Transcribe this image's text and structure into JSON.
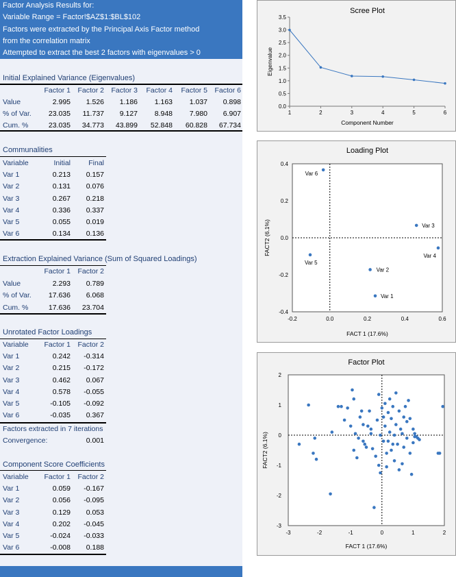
{
  "header": {
    "line1": "Factor Analysis Results for:",
    "line2": "Variable Range = Factor!$AZ$1:$BL$102",
    "line3": "Factors were extracted by the Principal Axis Factor method",
    "line4": "from the correlation matrix",
    "line5": "Attempted to extract the best 2 factors with eigenvalues > 0"
  },
  "initial_variance": {
    "title": "Initial Explained Variance (Eigenvalues)",
    "columns": [
      "Factor 1",
      "Factor 2",
      "Factor 3",
      "Factor 4",
      "Factor 5",
      "Factor 6"
    ],
    "rows": [
      {
        "label": "Value",
        "values": [
          "2.995",
          "1.526",
          "1.186",
          "1.163",
          "1.037",
          "0.898"
        ]
      },
      {
        "label": "% of Var.",
        "values": [
          "23.035",
          "11.737",
          "9.127",
          "8.948",
          "7.980",
          "6.907"
        ]
      },
      {
        "label": "Cum. %",
        "values": [
          "23.035",
          "34.773",
          "43.899",
          "52.848",
          "60.828",
          "67.734"
        ]
      }
    ]
  },
  "communalities": {
    "title": "Communalities",
    "columns": [
      "Variable",
      "Initial",
      "Final"
    ],
    "rows": [
      [
        "Var 1",
        "0.213",
        "0.157"
      ],
      [
        "Var 2",
        "0.131",
        "0.076"
      ],
      [
        "Var 3",
        "0.267",
        "0.218"
      ],
      [
        "Var 4",
        "0.336",
        "0.337"
      ],
      [
        "Var 5",
        "0.055",
        "0.019"
      ],
      [
        "Var 6",
        "0.134",
        "0.136"
      ]
    ]
  },
  "extraction_variance": {
    "title": "Extraction Explained Variance (Sum of Squared Loadings)",
    "columns": [
      "Factor 1",
      "Factor 2"
    ],
    "rows": [
      {
        "label": "Value",
        "values": [
          "2.293",
          "0.789"
        ]
      },
      {
        "label": "% of Var.",
        "values": [
          "17.636",
          "6.068"
        ]
      },
      {
        "label": "Cum. %",
        "values": [
          "17.636",
          "23.704"
        ]
      }
    ]
  },
  "unrotated_loadings": {
    "title": "Unrotated Factor Loadings",
    "columns": [
      "Variable",
      "Factor 1",
      "Factor 2"
    ],
    "rows": [
      [
        "Var 1",
        "0.242",
        "-0.314"
      ],
      [
        "Var 2",
        "0.215",
        "-0.172"
      ],
      [
        "Var 3",
        "0.462",
        "0.067"
      ],
      [
        "Var 4",
        "0.578",
        "-0.055"
      ],
      [
        "Var 5",
        "-0.105",
        "-0.092"
      ],
      [
        "Var 6",
        "-0.035",
        "0.367"
      ]
    ],
    "iterations_note": "Factors extracted in 7 iterations",
    "convergence_label": "Convergence:",
    "convergence_value": "0.001"
  },
  "score_coefficients": {
    "title": "Component Score Coefficients",
    "columns": [
      "Variable",
      "Factor 1",
      "Factor 2"
    ],
    "rows": [
      [
        "Var 1",
        "0.059",
        "-0.167"
      ],
      [
        "Var 2",
        "0.056",
        "-0.095"
      ],
      [
        "Var 3",
        "0.129",
        "0.053"
      ],
      [
        "Var 4",
        "0.202",
        "-0.045"
      ],
      [
        "Var 5",
        "-0.024",
        "-0.033"
      ],
      [
        "Var 6",
        "-0.008",
        "0.188"
      ]
    ]
  },
  "colors": {
    "banner": "#3a77c0",
    "panel_bg": "#eef1f8",
    "text": "#1f3e73",
    "point": "#3a77c0"
  },
  "chart_data": [
    {
      "type": "line",
      "title": "Scree Plot",
      "xlabel": "Component Number",
      "ylabel": "Eigenvalue",
      "x": [
        1,
        2,
        3,
        4,
        5,
        6
      ],
      "values": [
        2.995,
        1.526,
        1.186,
        1.163,
        1.037,
        0.898
      ],
      "xticks": [
        "1",
        "2",
        "3",
        "4",
        "5",
        "6"
      ],
      "yticks": [
        "0.0",
        "0.5",
        "1.0",
        "1.5",
        "2.0",
        "2.5",
        "3.0",
        "3.5"
      ],
      "xlim": [
        1,
        6
      ],
      "ylim": [
        0,
        3.5
      ]
    },
    {
      "type": "scatter",
      "title": "Loading Plot",
      "xlabel": "FACT 1 (17.6%)",
      "ylabel": "FACT2 (6.1%)",
      "points": [
        {
          "label": "Var 1",
          "x": 0.242,
          "y": -0.314
        },
        {
          "label": "Var 2",
          "x": 0.215,
          "y": -0.172
        },
        {
          "label": "Var 3",
          "x": 0.462,
          "y": 0.067
        },
        {
          "label": "Var 4",
          "x": 0.578,
          "y": -0.055
        },
        {
          "label": "Var 5",
          "x": -0.105,
          "y": -0.092
        },
        {
          "label": "Var 6",
          "x": -0.035,
          "y": 0.367
        }
      ],
      "xticks": [
        "-0.2",
        "0.0",
        "0.2",
        "0.4",
        "0.6"
      ],
      "yticks": [
        "-0.4",
        "-0.2",
        "0.0",
        "0.2",
        "0.4"
      ],
      "xlim": [
        -0.2,
        0.6
      ],
      "ylim": [
        -0.4,
        0.4
      ]
    },
    {
      "type": "scatter",
      "title": "Factor Plot",
      "xlabel": "FACT 1 (17.6%)",
      "ylabel": "FACT2 (6.1%)",
      "xticks": [
        "-3",
        "-2",
        "-1",
        "0",
        "1",
        "2"
      ],
      "yticks": [
        "-3",
        "-2",
        "-1",
        "0",
        "1",
        "2"
      ],
      "xlim": [
        -3,
        2
      ],
      "ylim": [
        -3,
        2
      ],
      "points": [
        [
          1.95,
          0.95
        ],
        [
          -2.35,
          1.0
        ],
        [
          -2.65,
          -0.3
        ],
        [
          -2.2,
          -0.6
        ],
        [
          -2.1,
          -0.8
        ],
        [
          -2.15,
          -0.1
        ],
        [
          -1.6,
          0.1
        ],
        [
          -1.65,
          -1.95
        ],
        [
          -1.4,
          0.95
        ],
        [
          -1.3,
          0.95
        ],
        [
          -1.2,
          0.5
        ],
        [
          -1.1,
          0.9
        ],
        [
          -0.95,
          1.5
        ],
        [
          -0.9,
          1.2
        ],
        [
          -1.0,
          0.3
        ],
        [
          -0.85,
          0.05
        ],
        [
          -0.9,
          -0.5
        ],
        [
          -0.8,
          -0.75
        ],
        [
          -0.75,
          -0.1
        ],
        [
          -0.7,
          0.6
        ],
        [
          -0.65,
          0.8
        ],
        [
          -0.6,
          0.35
        ],
        [
          -0.55,
          -0.3
        ],
        [
          -0.5,
          -0.4
        ],
        [
          -0.45,
          0.3
        ],
        [
          -0.4,
          0.8
        ],
        [
          -0.35,
          0.2
        ],
        [
          -0.3,
          -0.45
        ],
        [
          -0.25,
          -2.4
        ],
        [
          -0.2,
          -0.7
        ],
        [
          -0.15,
          0.5
        ],
        [
          -0.1,
          1.35
        ],
        [
          -0.1,
          -1.0
        ],
        [
          -0.05,
          -1.25
        ],
        [
          -0.05,
          0.0
        ],
        [
          0.0,
          0.9
        ],
        [
          0.05,
          0.6
        ],
        [
          0.05,
          -0.2
        ],
        [
          0.1,
          1.05
        ],
        [
          0.1,
          0.3
        ],
        [
          0.15,
          -0.6
        ],
        [
          0.15,
          -1.05
        ],
        [
          0.2,
          0.75
        ],
        [
          0.2,
          -0.2
        ],
        [
          0.25,
          0.1
        ],
        [
          0.3,
          0.55
        ],
        [
          0.3,
          -0.5
        ],
        [
          0.35,
          0.95
        ],
        [
          0.4,
          0.0
        ],
        [
          0.4,
          -0.85
        ],
        [
          0.45,
          1.4
        ],
        [
          0.45,
          0.35
        ],
        [
          0.5,
          -0.3
        ],
        [
          0.55,
          0.8
        ],
        [
          0.55,
          -1.15
        ],
        [
          0.6,
          0.2
        ],
        [
          0.65,
          -0.95
        ],
        [
          0.7,
          0.6
        ],
        [
          0.7,
          -0.4
        ],
        [
          0.75,
          0.95
        ],
        [
          0.8,
          0.45
        ],
        [
          0.8,
          -0.1
        ],
        [
          0.85,
          1.15
        ],
        [
          0.9,
          0.55
        ],
        [
          0.9,
          -0.6
        ],
        [
          0.95,
          -1.3
        ],
        [
          1.0,
          0.2
        ],
        [
          1.0,
          -0.25
        ],
        [
          1.05,
          0.05
        ],
        [
          1.1,
          -0.05
        ],
        [
          1.15,
          -0.1
        ],
        [
          1.2,
          -0.15
        ],
        [
          1.05,
          -0.05
        ],
        [
          1.8,
          -0.6
        ],
        [
          1.85,
          -0.6
        ],
        [
          -0.35,
          0.05
        ],
        [
          -0.6,
          -0.2
        ],
        [
          0.25,
          1.2
        ],
        [
          0.65,
          0.05
        ],
        [
          0.35,
          -0.3
        ]
      ]
    }
  ]
}
